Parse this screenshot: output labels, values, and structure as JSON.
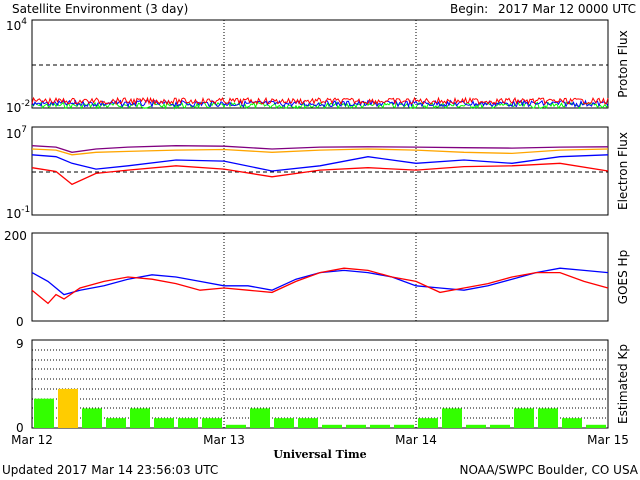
{
  "header": {
    "title": "Satellite Environment (3 day)",
    "begin_label": "Begin:",
    "begin_value": "2017 Mar 12 0000 UTC"
  },
  "footer": {
    "updated": "Updated 2017 Mar 14 23:56:03 UTC",
    "credit": "NOAA/SWPC Boulder, CO USA"
  },
  "x_axis": {
    "label": "Universal Time",
    "ticks": [
      "Mar 12",
      "Mar 13",
      "Mar 14",
      "Mar 15"
    ]
  },
  "colors": {
    "red": "#ff0000",
    "blue": "#0000ff",
    "green": "#00ff00",
    "orange": "#ffa500",
    "purple": "#800080",
    "kp_green": "#33ff00",
    "kp_yellow": "#ffcc00"
  },
  "chart_data": [
    {
      "type": "line",
      "ylabel": "Proton Flux",
      "yscale": "log",
      "ylim": [
        0.01,
        10000
      ],
      "ytick_labels": {
        "top_base": "10",
        "top_exp": "4",
        "bottom_base": "10",
        "bottom_exp": "-2"
      },
      "threshold": 10,
      "x": [
        0,
        72
      ],
      "series": [
        {
          "color": "#ff0000",
          "values": [
            0.03,
            0.03
          ]
        },
        {
          "color": "#0000ff",
          "values": [
            0.02,
            0.02
          ]
        },
        {
          "color": "#00ff00",
          "values": [
            0.015,
            0.015
          ]
        }
      ]
    },
    {
      "type": "line",
      "ylabel": "Electron Flux",
      "yscale": "log",
      "ylim": [
        0.1,
        10000000
      ],
      "ytick_labels": {
        "top_base": "10",
        "top_exp": "7",
        "bottom_base": "10",
        "bottom_exp": "-1"
      },
      "threshold": 1000,
      "x": [
        0,
        3,
        5,
        8,
        12,
        18,
        24,
        30,
        36,
        42,
        48,
        54,
        60,
        66,
        72
      ],
      "series": [
        {
          "color": "#800080",
          "values": [
            200000,
            150000,
            50000,
            100000,
            150000,
            200000,
            180000,
            100000,
            150000,
            160000,
            150000,
            130000,
            120000,
            150000,
            160000
          ]
        },
        {
          "color": "#ffa500",
          "values": [
            100000,
            80000,
            30000,
            50000,
            60000,
            80000,
            90000,
            50000,
            80000,
            100000,
            80000,
            50000,
            40000,
            80000,
            100000
          ]
        },
        {
          "color": "#0000ff",
          "values": [
            30000,
            20000,
            5000,
            1500,
            3000,
            10000,
            8000,
            1000,
            3000,
            20000,
            5000,
            10000,
            5000,
            20000,
            30000
          ]
        },
        {
          "color": "#ff0000",
          "values": [
            2000,
            900,
            60,
            600,
            1200,
            3000,
            1500,
            300,
            1200,
            2000,
            1200,
            2500,
            3000,
            5000,
            1000
          ]
        }
      ]
    },
    {
      "type": "line",
      "ylabel": "GOES Hp",
      "ylim": [
        0,
        200
      ],
      "ytick_labels": [
        "0",
        "200"
      ],
      "x": [
        0,
        2,
        3,
        4,
        6,
        9,
        12,
        15,
        18,
        21,
        24,
        27,
        30,
        33,
        36,
        39,
        42,
        45,
        48,
        51,
        54,
        57,
        60,
        63,
        66,
        69,
        72
      ],
      "series": [
        {
          "color": "#0000ff",
          "values": [
            110,
            90,
            75,
            60,
            70,
            80,
            95,
            105,
            100,
            90,
            80,
            80,
            70,
            95,
            110,
            115,
            110,
            100,
            80,
            75,
            70,
            80,
            95,
            110,
            120,
            115,
            110
          ]
        },
        {
          "color": "#ff0000",
          "values": [
            70,
            40,
            60,
            50,
            75,
            90,
            100,
            95,
            85,
            70,
            75,
            70,
            65,
            90,
            110,
            120,
            115,
            100,
            90,
            65,
            75,
            85,
            100,
            110,
            110,
            90,
            75
          ]
        }
      ]
    },
    {
      "type": "bar",
      "ylabel": "Estimated Kp",
      "ylim": [
        0,
        9
      ],
      "ytick_labels": [
        "0",
        "9"
      ],
      "x_bin_hours": 3,
      "values": [
        3.0,
        4.0,
        2.0,
        1.0,
        2.0,
        1.0,
        1.0,
        1.0,
        0.33,
        2.0,
        1.0,
        1.0,
        0.33,
        0.33,
        0.33,
        0.33,
        1.0,
        2.0,
        0.33,
        0.33,
        2.0,
        2.0,
        1.0,
        0.33
      ],
      "colors": [
        "#33ff00",
        "#ffcc00",
        "#33ff00",
        "#33ff00",
        "#33ff00",
        "#33ff00",
        "#33ff00",
        "#33ff00",
        "#33ff00",
        "#33ff00",
        "#33ff00",
        "#33ff00",
        "#33ff00",
        "#33ff00",
        "#33ff00",
        "#33ff00",
        "#33ff00",
        "#33ff00",
        "#33ff00",
        "#33ff00",
        "#33ff00",
        "#33ff00",
        "#33ff00",
        "#33ff00"
      ]
    }
  ]
}
